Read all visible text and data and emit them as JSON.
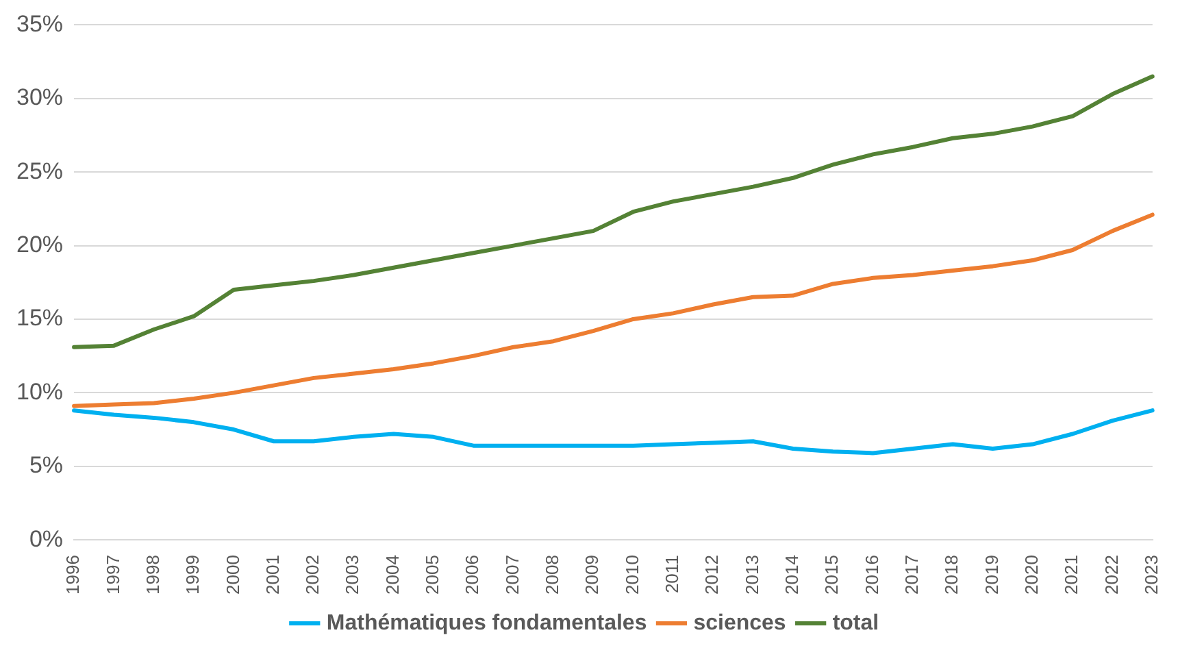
{
  "chart_data": {
    "type": "line",
    "categories": [
      "1996",
      "1997",
      "1998",
      "1999",
      "2000",
      "2001",
      "2002",
      "2003",
      "2004",
      "2005",
      "2006",
      "2007",
      "2008",
      "2009",
      "2010",
      "2011",
      "2012",
      "2013",
      "2014",
      "2015",
      "2016",
      "2017",
      "2018",
      "2019",
      "2020",
      "2021",
      "2022",
      "2023"
    ],
    "series": [
      {
        "name": "Mathématiques fondamentales",
        "color": "#00b0f0",
        "values": [
          8.8,
          8.5,
          8.3,
          8.0,
          7.5,
          6.7,
          6.7,
          7.0,
          7.2,
          7.0,
          6.4,
          6.4,
          6.4,
          6.4,
          6.4,
          6.5,
          6.6,
          6.7,
          6.2,
          6.0,
          5.9,
          6.2,
          6.5,
          6.2,
          6.5,
          7.2,
          8.1,
          8.8
        ]
      },
      {
        "name": "sciences",
        "color": "#ed7d31",
        "values": [
          9.1,
          9.2,
          9.3,
          9.6,
          10.0,
          10.5,
          11.0,
          11.3,
          11.6,
          12.0,
          12.5,
          13.1,
          13.5,
          14.2,
          15.0,
          15.4,
          16.0,
          16.5,
          16.6,
          17.4,
          17.8,
          18.0,
          18.3,
          18.6,
          19.0,
          19.7,
          21.0,
          22.1
        ]
      },
      {
        "name": "total",
        "color": "#548235",
        "values": [
          13.1,
          13.2,
          14.3,
          15.2,
          17.0,
          17.3,
          17.6,
          18.0,
          18.5,
          19.0,
          19.5,
          20.0,
          20.5,
          21.0,
          22.3,
          23.0,
          23.5,
          24.0,
          24.6,
          25.5,
          26.2,
          26.7,
          27.3,
          27.6,
          28.1,
          28.8,
          30.3,
          31.5
        ]
      }
    ],
    "ylim": [
      0,
      35
    ],
    "yticks": [
      {
        "value": 0,
        "label": "0%"
      },
      {
        "value": 5,
        "label": "5%"
      },
      {
        "value": 10,
        "label": "10%"
      },
      {
        "value": 15,
        "label": "15%"
      },
      {
        "value": 20,
        "label": "20%"
      },
      {
        "value": 25,
        "label": "25%"
      },
      {
        "value": 30,
        "label": "30%"
      },
      {
        "value": 35,
        "label": "35%"
      }
    ],
    "grid": "y",
    "legend": "bottom",
    "marker": "none",
    "line_style": "solid"
  }
}
